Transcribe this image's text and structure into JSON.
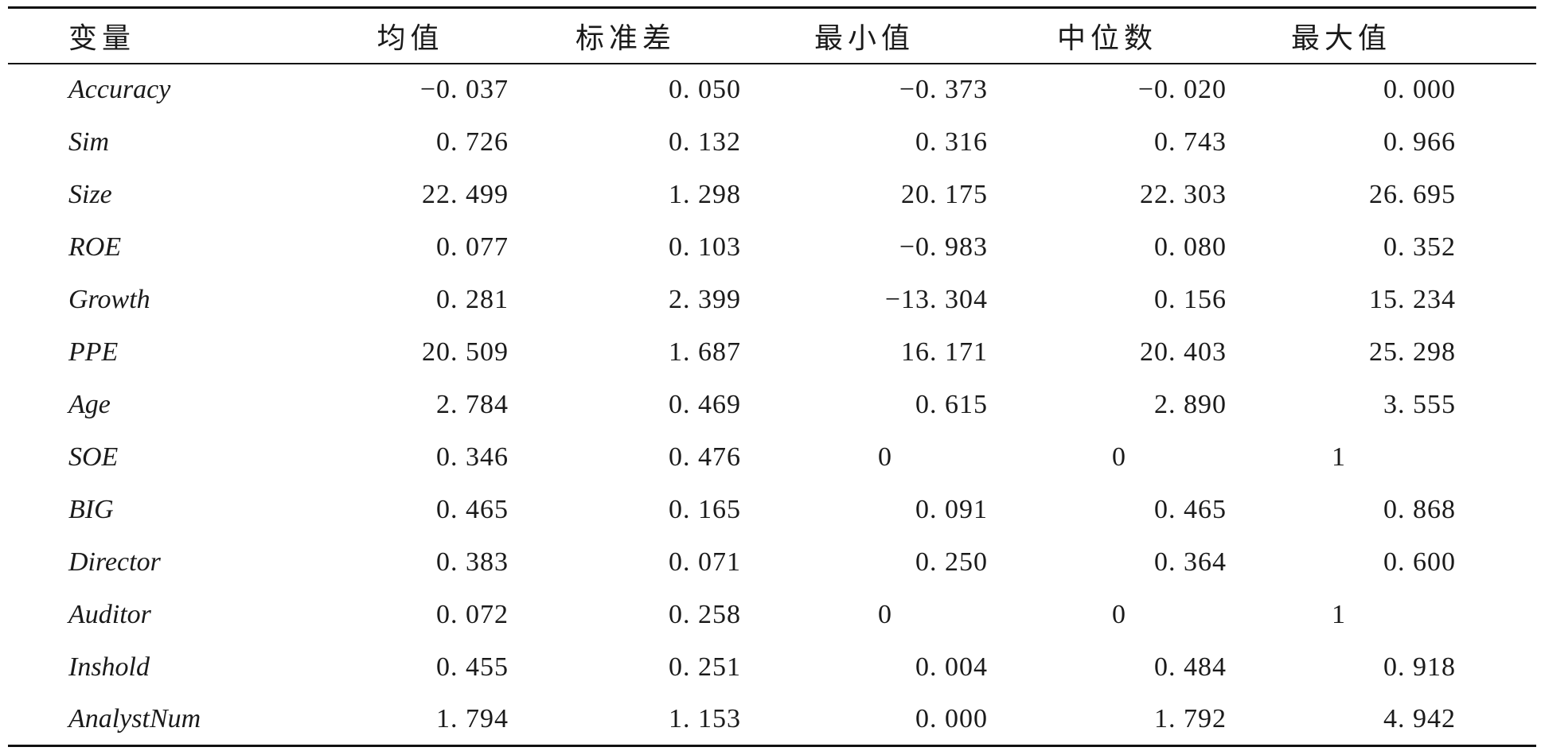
{
  "table": {
    "headers": [
      "变量",
      "均值",
      "标准差",
      "最小值",
      "中位数",
      "最大值"
    ],
    "rows": [
      {
        "var": "Accuracy",
        "mean": "−0. 037",
        "sd": "0. 050",
        "min": "−0. 373",
        "median": "−0. 020",
        "max": "0. 000"
      },
      {
        "var": "Sim",
        "mean": "0. 726",
        "sd": "0. 132",
        "min": "0. 316",
        "median": "0. 743",
        "max": "0. 966"
      },
      {
        "var": "Size",
        "mean": "22. 499",
        "sd": "1. 298",
        "min": "20. 175",
        "median": "22. 303",
        "max": "26. 695"
      },
      {
        "var": "ROE",
        "mean": "0. 077",
        "sd": "0. 103",
        "min": "−0. 983",
        "median": "0. 080",
        "max": "0. 352"
      },
      {
        "var": "Growth",
        "mean": "0. 281",
        "sd": "2. 399",
        "min": "−13. 304",
        "median": "0. 156",
        "max": "15. 234"
      },
      {
        "var": "PPE",
        "mean": "20. 509",
        "sd": "1. 687",
        "min": "16. 171",
        "median": "20. 403",
        "max": "25. 298"
      },
      {
        "var": "Age",
        "mean": "2. 784",
        "sd": "0. 469",
        "min": "0. 615",
        "median": "2. 890",
        "max": "3. 555"
      },
      {
        "var": "SOE",
        "mean": "0. 346",
        "sd": "0. 476",
        "min": "0",
        "median": "0",
        "max": "1"
      },
      {
        "var": "BIG",
        "mean": "0. 465",
        "sd": "0. 165",
        "min": "0. 091",
        "median": "0. 465",
        "max": "0. 868"
      },
      {
        "var": "Director",
        "mean": "0. 383",
        "sd": "0. 071",
        "min": "0. 250",
        "median": "0. 364",
        "max": "0. 600"
      },
      {
        "var": "Auditor",
        "mean": "0. 072",
        "sd": "0. 258",
        "min": "0",
        "median": "0",
        "max": "1"
      },
      {
        "var": "Inshold",
        "mean": "0. 455",
        "sd": "0. 251",
        "min": "0. 004",
        "median": "0. 484",
        "max": "0. 918"
      },
      {
        "var": "AnalystNum",
        "mean": "1. 794",
        "sd": "1. 153",
        "min": "0. 000",
        "median": "1. 792",
        "max": "4. 942"
      }
    ]
  }
}
